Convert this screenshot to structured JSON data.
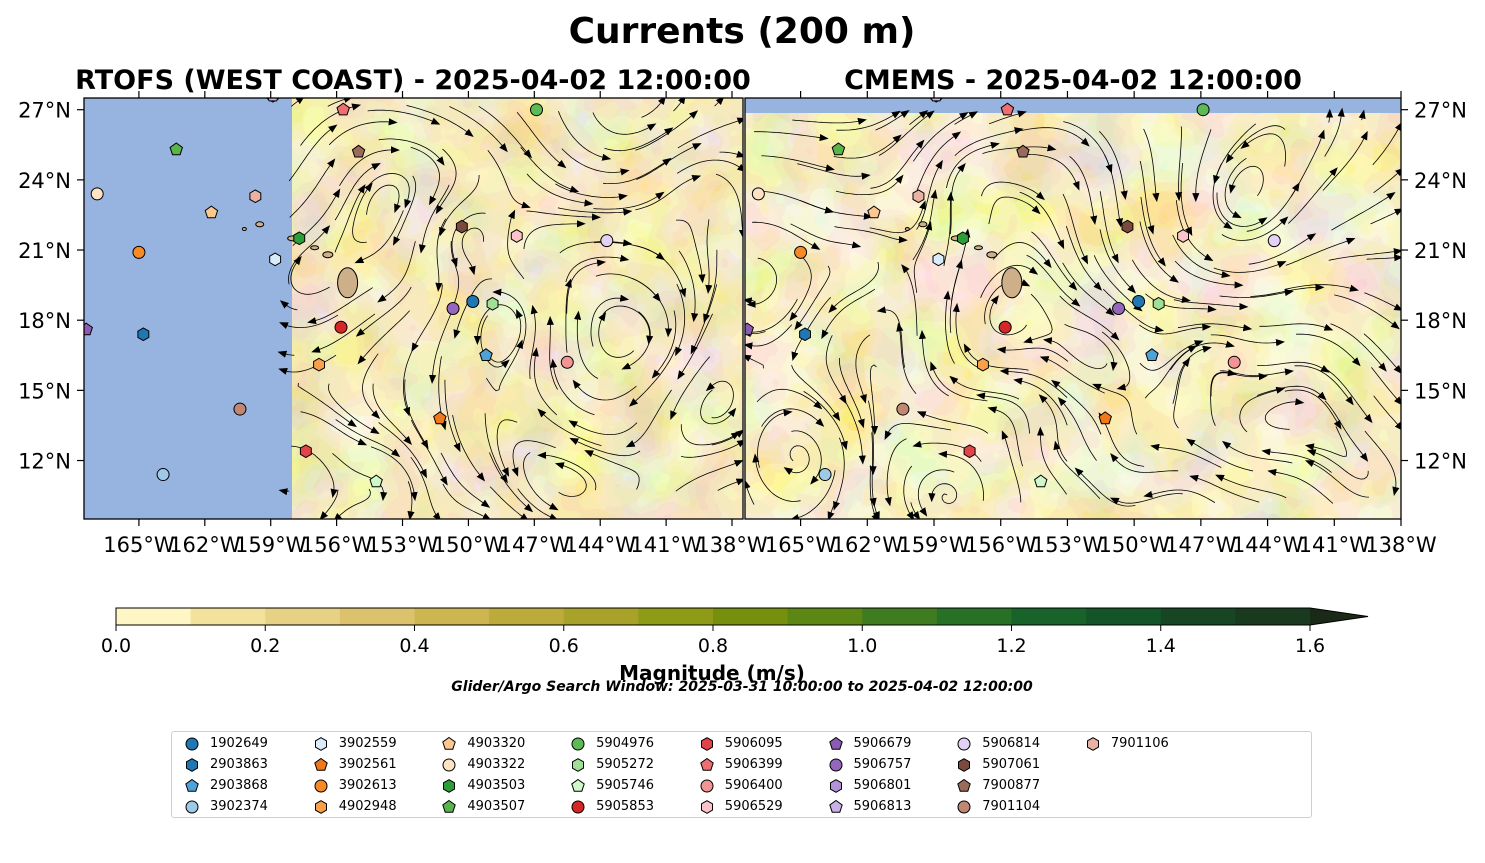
{
  "figure": {
    "suptitle": "Currents (200 m)",
    "search_window": "Glider/Argo Search Window: 2025-03-31 10:00:00 to 2025-04-02 12:00:00"
  },
  "chart_data": [
    {
      "type": "heatmap",
      "title": "RTOFS (WEST COAST) - 2025-04-02 12:00:00",
      "xlim": [
        -167.5,
        -137.5
      ],
      "ylim": [
        9.5,
        27.5
      ],
      "xticks": [
        -165,
        -162,
        -159,
        -156,
        -153,
        -150,
        -147,
        -144,
        -141,
        -138
      ],
      "yticks": [
        12,
        15,
        18,
        21,
        24,
        27
      ],
      "yaxis_side": "left",
      "model_domain_west_lon": -158.5,
      "masked_color": "#97b4e0",
      "grid": false,
      "floats": [
        {
          "id": "1902649",
          "lon": -149.8,
          "lat": 18.8
        },
        {
          "id": "2903863",
          "lon": -164.8,
          "lat": 17.4
        },
        {
          "id": "2903868",
          "lon": -149.2,
          "lat": 16.5
        },
        {
          "id": "3902374",
          "lon": -163.9,
          "lat": 11.4
        },
        {
          "id": "3902559",
          "lon": -158.8,
          "lat": 20.6
        },
        {
          "id": "3902561",
          "lon": -151.3,
          "lat": 13.8
        },
        {
          "id": "3902613",
          "lon": -165.0,
          "lat": 20.9
        },
        {
          "id": "4902948",
          "lon": -156.8,
          "lat": 16.1
        },
        {
          "id": "4903320",
          "lon": -161.7,
          "lat": 22.6
        },
        {
          "id": "4903322",
          "lon": -166.9,
          "lat": 23.4
        },
        {
          "id": "4903503",
          "lon": -157.7,
          "lat": 21.5
        },
        {
          "id": "4903507",
          "lon": -163.3,
          "lat": 25.3
        },
        {
          "id": "5904976",
          "lon": -146.9,
          "lat": 27.0
        },
        {
          "id": "5905272",
          "lon": -148.9,
          "lat": 18.7
        },
        {
          "id": "5905746",
          "lon": -154.2,
          "lat": 11.1
        },
        {
          "id": "5905853",
          "lon": -155.8,
          "lat": 17.7
        },
        {
          "id": "5906095",
          "lon": -157.4,
          "lat": 12.4
        },
        {
          "id": "5906399",
          "lon": -155.7,
          "lat": 27.0
        },
        {
          "id": "5906400",
          "lon": -145.5,
          "lat": 16.2
        },
        {
          "id": "5906529",
          "lon": -147.8,
          "lat": 21.6
        },
        {
          "id": "5906679",
          "lon": -167.4,
          "lat": 17.6
        },
        {
          "id": "5906757",
          "lon": -150.7,
          "lat": 18.5
        },
        {
          "id": "5906801",
          "lon": -158.9,
          "lat": 27.6
        },
        {
          "id": "5906813",
          "lon": -158.9,
          "lat": 27.6
        },
        {
          "id": "5906814",
          "lon": -143.7,
          "lat": 21.4
        },
        {
          "id": "5907061",
          "lon": -150.3,
          "lat": 22.0
        },
        {
          "id": "7900877",
          "lon": -155.0,
          "lat": 25.2
        },
        {
          "id": "7901104",
          "lon": -160.4,
          "lat": 14.2
        },
        {
          "id": "7901106",
          "lon": -159.7,
          "lat": 23.3
        }
      ]
    },
    {
      "type": "heatmap",
      "title": "CMEMS - 2025-04-02 12:00:00",
      "xlim": [
        -167.5,
        -138.0
      ],
      "ylim": [
        9.5,
        27.5
      ],
      "xticks": [
        -165,
        -162,
        -159,
        -156,
        -153,
        -150,
        -147,
        -144,
        -141,
        -138
      ],
      "yticks": [
        12,
        15,
        18,
        21,
        24,
        27
      ],
      "yaxis_side": "right",
      "model_domain_north_lat": 26.9,
      "masked_color": "#97b4e0",
      "grid": false,
      "floats": [
        {
          "id": "1902649",
          "lon": -149.8,
          "lat": 18.8
        },
        {
          "id": "2903863",
          "lon": -164.8,
          "lat": 17.4
        },
        {
          "id": "2903868",
          "lon": -149.2,
          "lat": 16.5
        },
        {
          "id": "3902374",
          "lon": -163.9,
          "lat": 11.4
        },
        {
          "id": "3902559",
          "lon": -158.8,
          "lat": 20.6
        },
        {
          "id": "3902561",
          "lon": -151.3,
          "lat": 13.8
        },
        {
          "id": "3902613",
          "lon": -165.0,
          "lat": 20.9
        },
        {
          "id": "4902948",
          "lon": -156.8,
          "lat": 16.1
        },
        {
          "id": "4903320",
          "lon": -161.7,
          "lat": 22.6
        },
        {
          "id": "4903322",
          "lon": -166.9,
          "lat": 23.4
        },
        {
          "id": "4903503",
          "lon": -157.7,
          "lat": 21.5
        },
        {
          "id": "4903507",
          "lon": -163.3,
          "lat": 25.3
        },
        {
          "id": "5904976",
          "lon": -146.9,
          "lat": 27.0
        },
        {
          "id": "5905272",
          "lon": -148.9,
          "lat": 18.7
        },
        {
          "id": "5905746",
          "lon": -154.2,
          "lat": 11.1
        },
        {
          "id": "5905853",
          "lon": -155.8,
          "lat": 17.7
        },
        {
          "id": "5906095",
          "lon": -157.4,
          "lat": 12.4
        },
        {
          "id": "5906399",
          "lon": -155.7,
          "lat": 27.0
        },
        {
          "id": "5906400",
          "lon": -145.5,
          "lat": 16.2
        },
        {
          "id": "5906529",
          "lon": -147.8,
          "lat": 21.6
        },
        {
          "id": "5906679",
          "lon": -167.4,
          "lat": 17.6
        },
        {
          "id": "5906757",
          "lon": -150.7,
          "lat": 18.5
        },
        {
          "id": "5906801",
          "lon": -158.9,
          "lat": 27.6
        },
        {
          "id": "5906813",
          "lon": -158.9,
          "lat": 27.6
        },
        {
          "id": "5906814",
          "lon": -143.7,
          "lat": 21.4
        },
        {
          "id": "5907061",
          "lon": -150.3,
          "lat": 22.0
        },
        {
          "id": "7900877",
          "lon": -155.0,
          "lat": 25.2
        },
        {
          "id": "7901104",
          "lon": -160.4,
          "lat": 14.2
        },
        {
          "id": "7901106",
          "lon": -159.7,
          "lat": 23.3
        }
      ]
    }
  ],
  "colorbar": {
    "label": "Magnitude (m/s)",
    "min": 0.0,
    "max": 1.6,
    "step": 0.1,
    "tick_labels": [
      "0.0",
      "0.2",
      "0.4",
      "0.6",
      "0.8",
      "1.0",
      "1.2",
      "1.4",
      "1.6"
    ],
    "extend": "max",
    "colors": [
      "#fef6c4",
      "#f3e29b",
      "#e7d185",
      "#dcc26c",
      "#cdb552",
      "#bcab3a",
      "#a9a22a",
      "#8f9a17",
      "#76900e",
      "#5d8715",
      "#3f7c1f",
      "#277126",
      "#17632a",
      "#135528",
      "#174624",
      "#1a3a1f",
      "#1a2a17"
    ]
  },
  "legend": {
    "columns": 9,
    "items": [
      {
        "id": "1902649",
        "marker": "circle",
        "color": "#1f77b4"
      },
      {
        "id": "2903863",
        "marker": "hexagon",
        "color": "#1f77b4"
      },
      {
        "id": "2903868",
        "marker": "pentagon",
        "color": "#4fa2d8"
      },
      {
        "id": "3902374",
        "marker": "circle",
        "color": "#9ecae8"
      },
      {
        "id": "3902559",
        "marker": "hexagon",
        "color": "#d9ecfa"
      },
      {
        "id": "3902561",
        "marker": "pentagon",
        "color": "#f07818"
      },
      {
        "id": "3902613",
        "marker": "circle",
        "color": "#f88a26"
      },
      {
        "id": "4902948",
        "marker": "hexagon",
        "color": "#fba04a"
      },
      {
        "id": "4903320",
        "marker": "pentagon",
        "color": "#fbc890"
      },
      {
        "id": "4903322",
        "marker": "circle",
        "color": "#fde2c4"
      },
      {
        "id": "4903503",
        "marker": "hexagon",
        "color": "#2c9e38"
      },
      {
        "id": "4903507",
        "marker": "pentagon",
        "color": "#58b54b"
      },
      {
        "id": "5904976",
        "marker": "circle",
        "color": "#5dbb55"
      },
      {
        "id": "5905272",
        "marker": "hexagon",
        "color": "#9fe095"
      },
      {
        "id": "5905746",
        "marker": "pentagon",
        "color": "#cff7c9"
      },
      {
        "id": "5905853",
        "marker": "circle",
        "color": "#d62728"
      },
      {
        "id": "5906095",
        "marker": "hexagon",
        "color": "#e04448"
      },
      {
        "id": "5906399",
        "marker": "pentagon",
        "color": "#ee6e72"
      },
      {
        "id": "5906400",
        "marker": "circle",
        "color": "#f39494"
      },
      {
        "id": "5906529",
        "marker": "hexagon",
        "color": "#fcc4c8"
      },
      {
        "id": "5906679",
        "marker": "pentagon",
        "color": "#8c5cb4"
      },
      {
        "id": "5906757",
        "marker": "circle",
        "color": "#9467bd"
      },
      {
        "id": "5906801",
        "marker": "hexagon",
        "color": "#b392d6"
      },
      {
        "id": "5906813",
        "marker": "pentagon",
        "color": "#cbb0e8"
      },
      {
        "id": "5906814",
        "marker": "circle",
        "color": "#e4d2f6"
      },
      {
        "id": "5907061",
        "marker": "hexagon",
        "color": "#7a4a3e"
      },
      {
        "id": "7900877",
        "marker": "pentagon",
        "color": "#9a6a5a"
      },
      {
        "id": "7901104",
        "marker": "circle",
        "color": "#c08872"
      },
      {
        "id": "7901106",
        "marker": "hexagon",
        "color": "#e8b2a4"
      }
    ]
  }
}
